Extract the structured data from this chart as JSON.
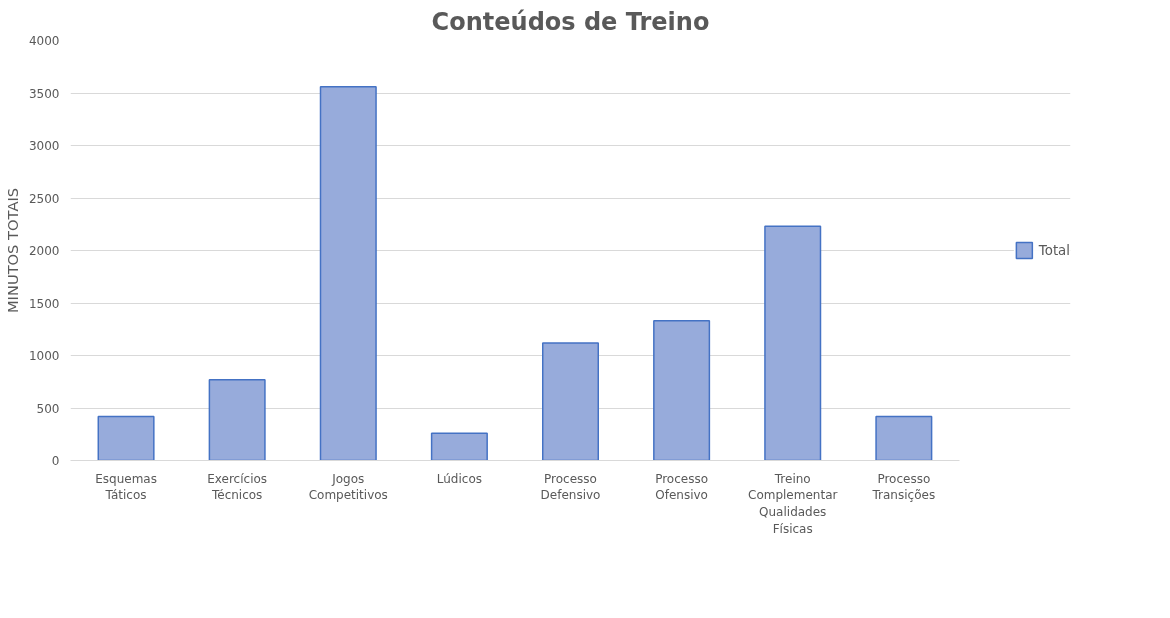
{
  "chart_data": {
    "type": "bar",
    "title": "Conteúdos de Treino",
    "ylabel": "MINUTOS TOTAIS",
    "categories": [
      "Esquemas Táticos",
      "Exercícios Técnicos",
      "Jogos Competitivos",
      "Lúdicos",
      "Processo Defensivo",
      "Processo Ofensivo",
      "Treino Complementar Qualidades Físicas",
      "Processo Transições"
    ],
    "series": [
      {
        "name": "Total",
        "color": "#97abdb",
        "values": [
          420,
          770,
          3560,
          260,
          1120,
          1330,
          2230,
          420
        ]
      }
    ],
    "ylim": [
      0,
      4000
    ],
    "yticks": [
      0,
      500,
      1000,
      1500,
      2000,
      2500,
      3000,
      3500,
      4000
    ],
    "grid": "y",
    "legend": "right"
  }
}
